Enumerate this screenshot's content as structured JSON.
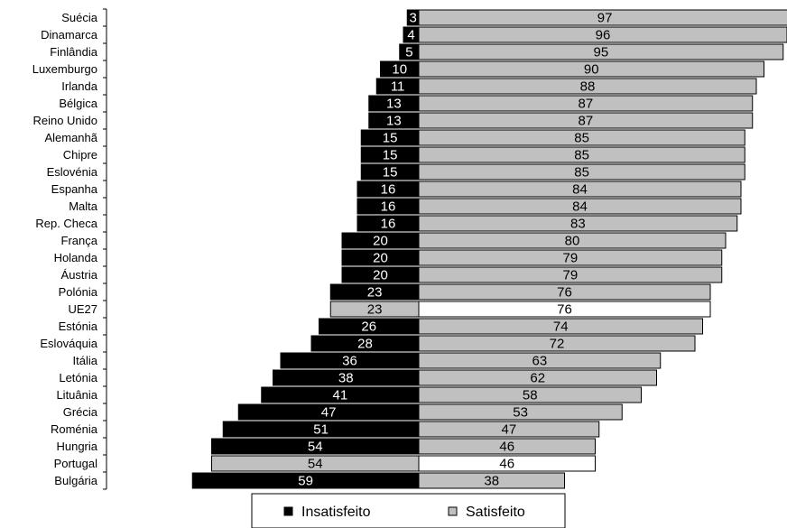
{
  "chart_data": {
    "type": "bar",
    "orientation": "horizontal-diverging",
    "categories": [
      "Suécia",
      "Dinamarca",
      "Finlândia",
      "Luxemburgo",
      "Irlanda",
      "Bélgica",
      "Reino Unido",
      "Alemanhã",
      "Chipre",
      "Eslovénia",
      "Espanha",
      "Malta",
      "Rep. Checa",
      "França",
      "Holanda",
      "Áustria",
      "Polónia",
      "UE27",
      "Estónia",
      "Eslováquia",
      "Itália",
      "Letónia",
      "Lituânia",
      "Grécia",
      "Roménia",
      "Hungria",
      "Portugal",
      "Bulgária"
    ],
    "series": [
      {
        "name": "Insatisfeito",
        "color": "#000000",
        "values": [
          3,
          4,
          5,
          10,
          11,
          13,
          13,
          15,
          15,
          15,
          16,
          16,
          16,
          20,
          20,
          20,
          23,
          23,
          26,
          28,
          36,
          38,
          41,
          47,
          51,
          54,
          54,
          59
        ]
      },
      {
        "name": "Satisfeito",
        "color": "#c0c0c0",
        "values": [
          97,
          96,
          95,
          90,
          88,
          87,
          87,
          85,
          85,
          85,
          84,
          84,
          83,
          80,
          79,
          79,
          76,
          76,
          74,
          72,
          63,
          62,
          58,
          53,
          47,
          46,
          46,
          38
        ]
      }
    ],
    "highlight": [
      {
        "category": "UE27",
        "insatisfeito_color": "#c0c0c0",
        "satisfeito_color": "#ffffff"
      },
      {
        "category": "Portugal",
        "insatisfeito_color": "#c0c0c0",
        "satisfeito_color": "#ffffff"
      }
    ],
    "legend": {
      "position": "bottom",
      "entries": [
        "Insatisfeito",
        "Satisfeito"
      ]
    },
    "grid": false
  }
}
